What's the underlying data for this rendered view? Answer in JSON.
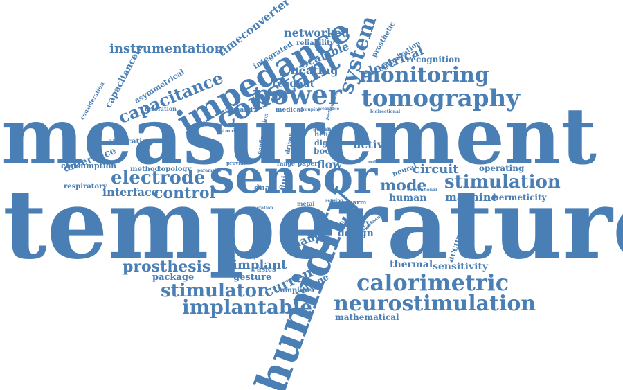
{
  "colors": {
    "text": "#4a7fb5",
    "background": "#ffffff"
  },
  "words": [
    "measurement",
    "temperature",
    "sensor",
    "humidity",
    "impedance",
    "constant",
    "power",
    "system",
    "tomography",
    "monitoring",
    "calorimetric",
    "neurostimulation",
    "implantable",
    "stimulator",
    "electrode",
    "stimulation",
    "capacitance",
    "prosthesis",
    "instrumentation",
    "timeconverter",
    "networked",
    "electrical",
    "control",
    "mode",
    "current",
    "implant",
    "difference",
    "interface",
    "heating",
    "readout",
    "scalable",
    "recognition",
    "circuit",
    "machine",
    "human",
    "flow",
    "active",
    "hand",
    "thermal",
    "sensitivity",
    "accuracy",
    "design",
    "safety",
    "voltage",
    "gesture",
    "package",
    "hermeticity",
    "operating",
    "mathematical",
    "consumption",
    "respiratory",
    "method",
    "topology",
    "capacitanceto",
    "asymmetrical",
    "integrated",
    "reliability",
    "prosthetic",
    "optimization",
    "application",
    "fluid",
    "dual",
    "book",
    "digit",
    "heater",
    "advance",
    "paper",
    "neural",
    "muscle",
    "asics",
    "amplifier",
    "forearm",
    "metal",
    "consideration",
    "resolution",
    "demand",
    "medical",
    "standard",
    "configuration",
    "driver",
    "model",
    "range",
    "grouping",
    "wearable",
    "provide",
    "reduction",
    "bidirectional",
    "improved",
    "sensing",
    "experimental",
    "conventional",
    "operation",
    "parameter",
    "performance"
  ]
}
